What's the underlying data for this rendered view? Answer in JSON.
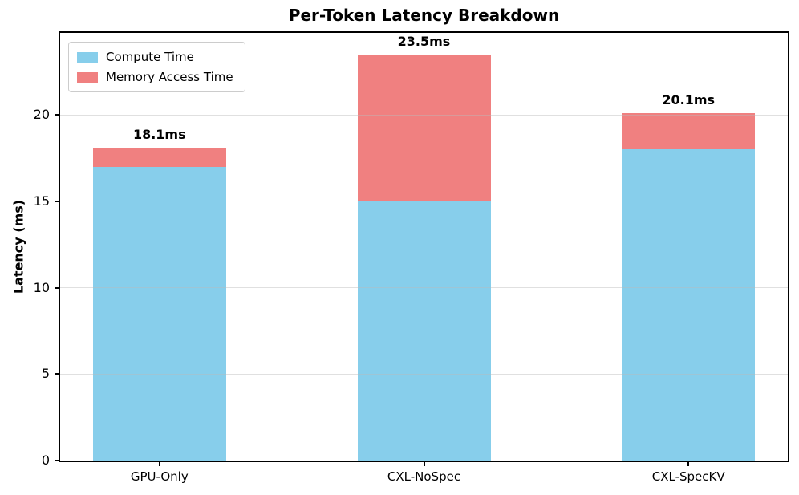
{
  "chart_data": {
    "type": "bar",
    "stacked": true,
    "title": "Per-Token Latency Breakdown",
    "xlabel": "",
    "ylabel": "Latency (ms)",
    "categories": [
      "GPU-Only",
      "CXL-NoSpec",
      "CXL-SpecKV"
    ],
    "series": [
      {
        "name": "Compute Time",
        "color": "#87CEEB",
        "values": [
          17.0,
          15.0,
          18.0
        ]
      },
      {
        "name": "Memory Access Time",
        "color": "#F08080",
        "values": [
          1.1,
          8.5,
          2.1
        ]
      }
    ],
    "totals": [
      18.1,
      23.5,
      20.1
    ],
    "total_labels": [
      "18.1ms",
      "23.5ms",
      "20.1ms"
    ],
    "yticks": [
      0,
      5,
      10,
      15,
      20
    ],
    "ytick_labels": [
      "0",
      "5",
      "10",
      "15",
      "20"
    ],
    "ylim": [
      0,
      24.74
    ],
    "grid": "horizontal",
    "gridline_color": "#bbbbbb",
    "legend_position": "upper-left",
    "spine_color": "#000000",
    "background_color": "#ffffff"
  }
}
